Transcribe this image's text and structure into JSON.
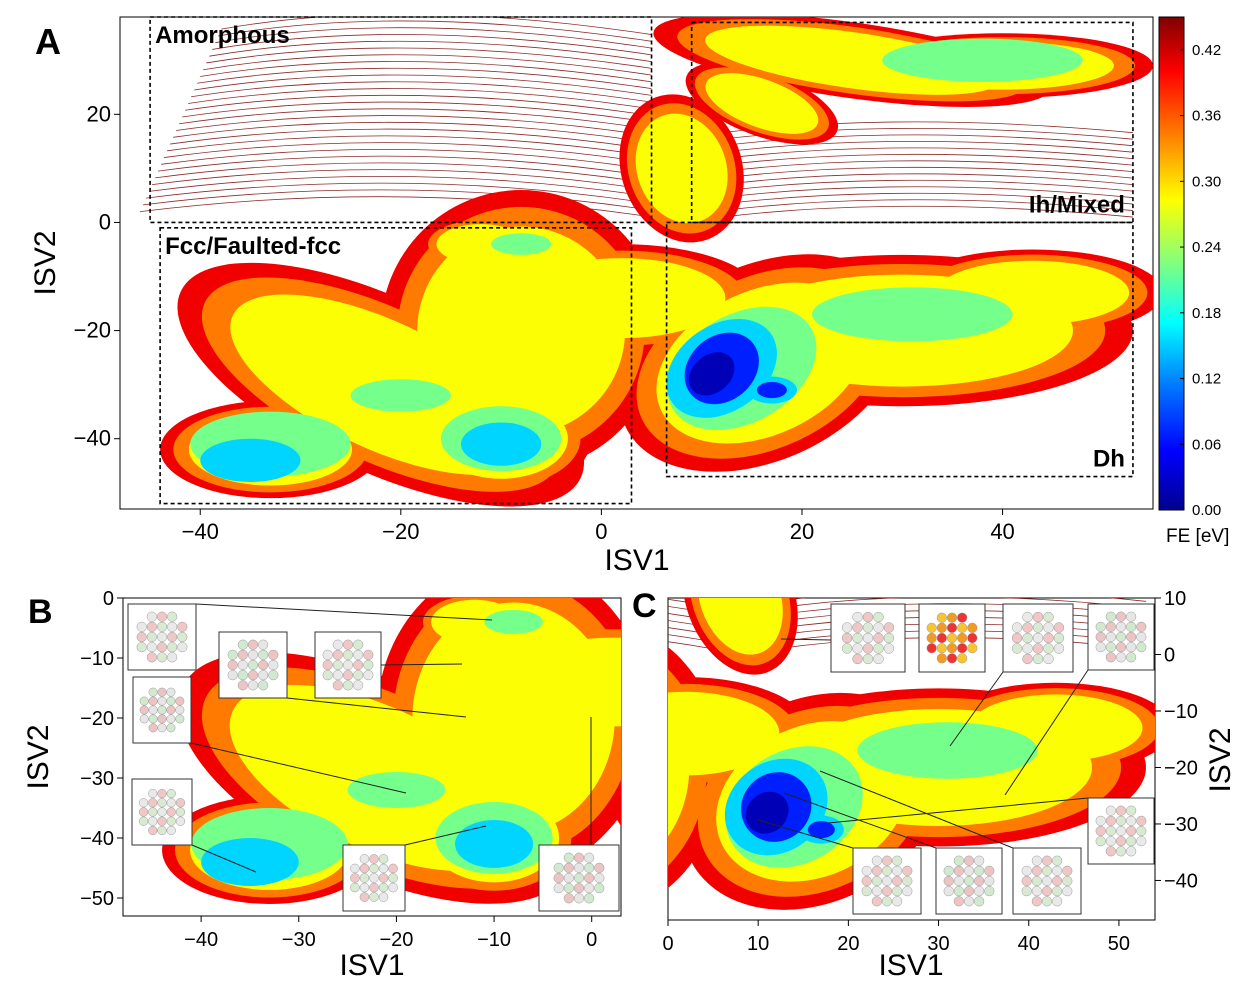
{
  "chart_data": [
    {
      "panel": "A",
      "type": "heatmap",
      "xlabel": "ISV1",
      "ylabel": "ISV2",
      "xlim": [
        -48,
        55
      ],
      "ylim": [
        -53,
        38
      ],
      "xticks": [
        -40,
        -20,
        0,
        20,
        40
      ],
      "xtick_labels": [
        "−40",
        "−20",
        "0",
        "20",
        "40"
      ],
      "yticks": [
        -40,
        -20,
        0,
        20
      ],
      "ytick_labels": [
        "−40",
        "−20",
        "0",
        "20"
      ],
      "grid": false,
      "colorbar": {
        "label": "FE [eV]",
        "range": [
          0.0,
          0.45
        ],
        "ticks": [
          0.0,
          0.06,
          0.12,
          0.18,
          0.24,
          0.3,
          0.36,
          0.42
        ],
        "tick_labels": [
          "0.00",
          "0.06",
          "0.12",
          "0.18",
          "0.24",
          "0.30",
          "0.36",
          "0.42"
        ],
        "colormap": "jet",
        "colors": [
          "#00008f",
          "#0000ff",
          "#0080ff",
          "#00ffff",
          "#80ff80",
          "#ffff00",
          "#ff8000",
          "#ff0000",
          "#800000"
        ]
      },
      "regions": [
        {
          "label": "Amorphous",
          "x": [
            -45,
            5
          ],
          "y": [
            0,
            38
          ]
        },
        {
          "label": "Ih/Mixed",
          "x": [
            9,
            53
          ],
          "y": [
            0,
            37
          ]
        },
        {
          "label": "Fcc/Faulted-fcc",
          "x": [
            -44,
            3
          ],
          "y": [
            -52,
            -1
          ]
        },
        {
          "label": "Dh",
          "x": [
            6.5,
            53
          ],
          "y": [
            -47,
            0
          ]
        }
      ],
      "minima": [
        {
          "x": 12,
          "y": -27,
          "fe": 0.0
        },
        {
          "x": 9,
          "y": -31,
          "fe": 0.01
        },
        {
          "x": 17,
          "y": -31,
          "fe": 0.06
        },
        {
          "x": -35,
          "y": -45,
          "fe": 0.1
        },
        {
          "x": -38,
          "y": -41,
          "fe": 0.12
        },
        {
          "x": -10,
          "y": -41,
          "fe": 0.12
        },
        {
          "x": 38,
          "y": 30,
          "fe": 0.2
        },
        {
          "x": -8,
          "y": -4,
          "fe": 0.2
        },
        {
          "x": -20,
          "y": -32,
          "fe": 0.2
        },
        {
          "x": 31,
          "y": -16,
          "fe": 0.22
        }
      ]
    },
    {
      "panel": "B",
      "type": "heatmap",
      "xlabel": "ISV1",
      "ylabel": "ISV2",
      "xlim": [
        -48,
        3
      ],
      "ylim": [
        -53,
        0
      ],
      "xticks": [
        -40,
        -30,
        -20,
        -10,
        0
      ],
      "xtick_labels": [
        "−40",
        "−30",
        "−20",
        "−10",
        "0"
      ],
      "yticks": [
        0,
        -10,
        -20,
        -30,
        -40,
        -50
      ],
      "ytick_labels": [
        "0",
        "−10",
        "−20",
        "−30",
        "−40",
        "−50"
      ]
    },
    {
      "panel": "C",
      "type": "heatmap",
      "xlabel": "ISV1",
      "ylabel": "ISV2",
      "xlim": [
        0,
        54
      ],
      "ylim": [
        -47,
        10
      ],
      "xticks": [
        0,
        10,
        20,
        30,
        40,
        50
      ],
      "xtick_labels": [
        "0",
        "10",
        "20",
        "30",
        "40",
        "50"
      ],
      "yticks": [
        10,
        0,
        -10,
        -20,
        -30,
        -40
      ],
      "ytick_labels": [
        "10",
        "0",
        "−10",
        "−20",
        "−30",
        "−40"
      ]
    }
  ]
}
